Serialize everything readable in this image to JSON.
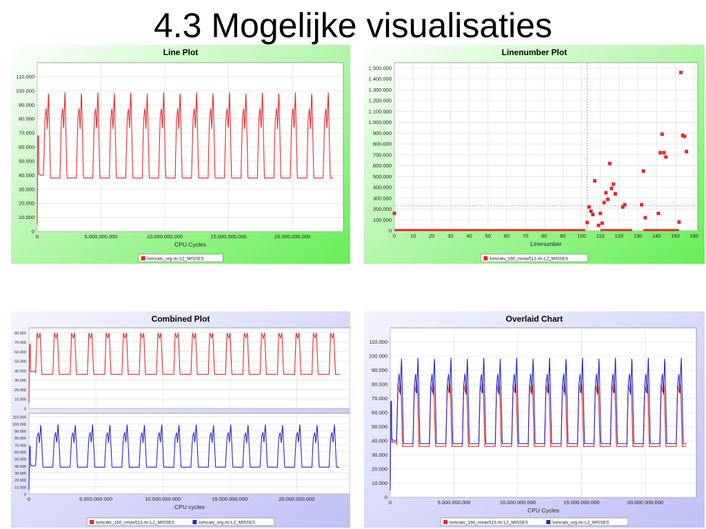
{
  "slide": {
    "title": "4.3 Mogelijke visualisaties"
  },
  "colors": {
    "red": "#e8262a",
    "blue": "#2525c8",
    "green_bg": "#66ee55",
    "purple_bg": "#bfc0f6"
  },
  "chart_data": [
    {
      "type": "line",
      "title": "Line Plot",
      "xlabel": "CPU Cycles",
      "ylabel": "",
      "xlim": [
        0,
        24000000000
      ],
      "ylim": [
        0,
        120000
      ],
      "xticks": [
        "0",
        "5.000.000.000",
        "10.000.000.000",
        "15.000.000.000",
        "20.000.000.000"
      ],
      "yticks": [
        "0",
        "10.000",
        "20.000",
        "30.000",
        "40.000",
        "50.000",
        "60.000",
        "70.000",
        "80.000",
        "90.000",
        "100.000",
        "110.000"
      ],
      "legend_position": "bottom",
      "series": [
        {
          "name": "tomcatv_org.rtc:L2_MISSES",
          "color": "#e8262a",
          "pattern": "org"
        }
      ]
    },
    {
      "type": "scatter",
      "title": "Linenumber Plot",
      "xlabel": "Linenumber",
      "ylabel": "",
      "xlim": [
        0,
        162
      ],
      "ylim": [
        0,
        1550000
      ],
      "xticks": [
        "0",
        "10",
        "20",
        "30",
        "40",
        "50",
        "60",
        "70",
        "80",
        "90",
        "100",
        "110",
        "120",
        "130",
        "140",
        "150",
        "160"
      ],
      "yticks": [
        "0",
        "100.000",
        "200.000",
        "300.000",
        "400.000",
        "500.000",
        "600.000",
        "700.000",
        "800.000",
        "900.000",
        "1.000.000",
        "1.100.000",
        "1.200.000",
        "1.300.000",
        "1.400.000",
        "1.500.000"
      ],
      "crosshair": {
        "x": 103,
        "y": 230000
      },
      "legend_position": "bottom",
      "series": [
        {
          "name": "tomcatv_160_nmax513.rtc:L2_MISSES",
          "color": "#e8262a",
          "points": [
            [
              0,
              160000
            ],
            [
              103,
              75000
            ],
            [
              104,
              220000
            ],
            [
              105,
              180000
            ],
            [
              106,
              150000
            ],
            [
              107,
              460000
            ],
            [
              109,
              50000
            ],
            [
              110,
              160000
            ],
            [
              111,
              70000
            ],
            [
              112,
              260000
            ],
            [
              113,
              350000
            ],
            [
              114,
              290000
            ],
            [
              115,
              620000
            ],
            [
              116,
              390000
            ],
            [
              117,
              430000
            ],
            [
              118,
              340000
            ],
            [
              122,
              220000
            ],
            [
              123,
              240000
            ],
            [
              132,
              240000
            ],
            [
              133,
              550000
            ],
            [
              134,
              120000
            ],
            [
              141,
              160000
            ],
            [
              142,
              720000
            ],
            [
              143,
              890000
            ],
            [
              144,
              720000
            ],
            [
              145,
              680000
            ],
            [
              152,
              80000
            ],
            [
              153,
              1460000
            ],
            [
              154,
              880000
            ],
            [
              155,
              870000
            ],
            [
              156,
              730000
            ]
          ],
          "baseline": [
            [
              0,
              102
            ],
            [
              110,
              127
            ],
            [
              133,
              152
            ]
          ]
        }
      ]
    },
    {
      "type": "line",
      "title": "Combined Plot",
      "xlabel": "CPU cycles",
      "ylabel": "",
      "xlim": [
        0,
        24000000000
      ],
      "xticks": [
        "0",
        "5.000.000.000",
        "10.000.000.000",
        "15.000.000.000",
        "20.000.000.000"
      ],
      "subplots": [
        {
          "ylim": [
            0,
            85000
          ],
          "yticks": [
            "0",
            "10.000",
            "20.000",
            "30.000",
            "40.000",
            "50.000",
            "60.000",
            "70.000",
            "80.000"
          ]
        },
        {
          "ylim": [
            0,
            115000
          ],
          "yticks": [
            "0",
            "10.000",
            "20.000",
            "30.000",
            "40.000",
            "50.000",
            "60.000",
            "70.000",
            "80.000",
            "90.000",
            "100.000",
            "110.000"
          ]
        }
      ],
      "legend_position": "bottom",
      "series": [
        {
          "name": "tomcatv_160_nmax513.rtc:L2_MISSES",
          "color": "#e8262a",
          "pattern": "160"
        },
        {
          "name": "tomcatv_org.rtc:L2_MISSES",
          "color": "#2525c8",
          "pattern": "org"
        }
      ]
    },
    {
      "type": "line",
      "title": "Overlaid Chart",
      "xlabel": "CPU Cycles",
      "ylabel": "",
      "xlim": [
        0,
        24000000000
      ],
      "ylim": [
        0,
        120000
      ],
      "xticks": [
        "0",
        "5.000.000.000",
        "10.000.000.000",
        "15.000.000.000",
        "20.000.000.000"
      ],
      "yticks": [
        "0",
        "10.000",
        "20.000",
        "30.000",
        "40.000",
        "50.000",
        "60.000",
        "70.000",
        "80.000",
        "90.000",
        "100.000",
        "110.000"
      ],
      "legend_position": "bottom",
      "series": [
        {
          "name": "tomcatv_160_nmax513.rtc:L2_MISSES",
          "color": "#e8262a",
          "pattern": "160"
        },
        {
          "name": "tomcatv_org.rtc:L2_MISSES",
          "color": "#2525c8",
          "pattern": "org"
        }
      ]
    }
  ]
}
